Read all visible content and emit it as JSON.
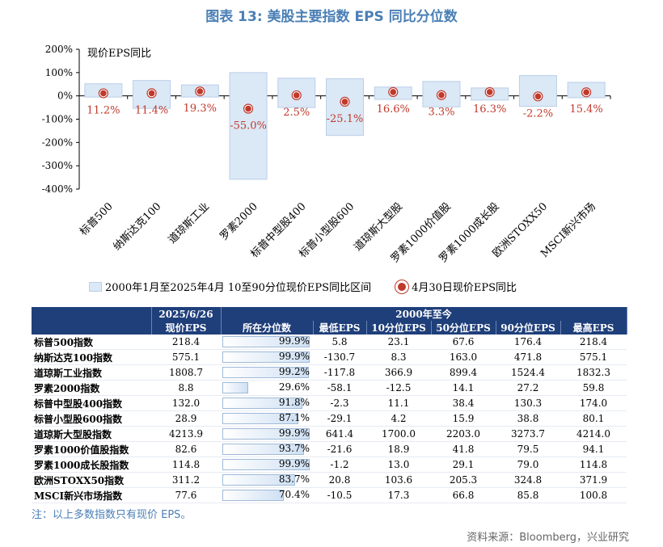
{
  "title": "图表 13: 美股主要指数 EPS 同比分位数",
  "chart_data": {
    "type": "bar",
    "ylabel_in_plot": "现价EPS同比",
    "ylim": [
      -400,
      200
    ],
    "yticks": [
      "200%",
      "100%",
      "0%",
      "-100%",
      "-200%",
      "-300%",
      "-400%"
    ],
    "categories": [
      "标普500",
      "纳斯达克100",
      "道琼斯工业",
      "罗素2000",
      "标普中型股400",
      "标普小型股600",
      "道琼斯大型股",
      "罗素1000价值股",
      "罗素1000成长股",
      "欧洲STOXX50",
      "MSCI新兴市场"
    ],
    "series": [
      {
        "name": "2000年1月至2025年4月 10至90分位现价EPS同比区间",
        "low": [
          -5,
          -54,
          -5,
          -358,
          -50,
          -170,
          -15,
          -47,
          -18,
          -45,
          -8
        ],
        "high": [
          52,
          66,
          47,
          100,
          76,
          74,
          38,
          62,
          34,
          87,
          58
        ]
      },
      {
        "name": "4月30日现价EPS同比",
        "values": [
          11.2,
          11.4,
          19.3,
          -55.0,
          2.5,
          -25.1,
          16.6,
          3.3,
          16.3,
          -2.2,
          15.4
        ],
        "labels": [
          "11.2%",
          "11.4%",
          "19.3%",
          "-55.0%",
          "2.5%",
          "-25.1%",
          "16.6%",
          "3.3%",
          "16.3%",
          "-2.2%",
          "15.4%"
        ]
      }
    ],
    "grid": false,
    "legend": "bottom"
  },
  "table": {
    "header_top": [
      "2025/6/26",
      "2000年至今"
    ],
    "header_sub": [
      "现价EPS",
      "所在分位数",
      "最低EPS",
      "10分位EPS",
      "50分位EPS",
      "90分位EPS",
      "最高EPS"
    ],
    "rows": [
      {
        "name": "标普500指数",
        "eps": "218.4",
        "pct": "99.9%",
        "pv": 99.9,
        "min": "5.8",
        "p10": "23.1",
        "p50": "67.6",
        "p90": "176.4",
        "max": "218.4"
      },
      {
        "name": "纳斯达克100指数",
        "eps": "575.1",
        "pct": "99.9%",
        "pv": 99.9,
        "min": "-130.7",
        "p10": "8.3",
        "p50": "163.0",
        "p90": "471.8",
        "max": "575.1"
      },
      {
        "name": "道琼斯工业指数",
        "eps": "1808.7",
        "pct": "99.2%",
        "pv": 99.2,
        "min": "-117.8",
        "p10": "366.9",
        "p50": "899.4",
        "p90": "1524.4",
        "max": "1832.3"
      },
      {
        "name": "罗素2000指数",
        "eps": "8.8",
        "pct": "29.6%",
        "pv": 29.6,
        "min": "-58.1",
        "p10": "-12.5",
        "p50": "14.1",
        "p90": "27.2",
        "max": "59.8"
      },
      {
        "name": "标普中型股400指数",
        "eps": "132.0",
        "pct": "91.8%",
        "pv": 91.8,
        "min": "-2.3",
        "p10": "11.1",
        "p50": "38.4",
        "p90": "130.3",
        "max": "174.0"
      },
      {
        "name": "标普小型股600指数",
        "eps": "28.9",
        "pct": "87.1%",
        "pv": 87.1,
        "min": "-29.1",
        "p10": "4.2",
        "p50": "15.9",
        "p90": "38.8",
        "max": "80.1"
      },
      {
        "name": "道琼斯大型股指数",
        "eps": "4213.9",
        "pct": "99.9%",
        "pv": 99.9,
        "min": "641.4",
        "p10": "1700.0",
        "p50": "2203.0",
        "p90": "3273.7",
        "max": "4214.0"
      },
      {
        "name": "罗素1000价值股指数",
        "eps": "82.6",
        "pct": "93.7%",
        "pv": 93.7,
        "min": "-21.6",
        "p10": "18.9",
        "p50": "41.8",
        "p90": "79.5",
        "max": "94.1"
      },
      {
        "name": "罗素1000成长股指数",
        "eps": "114.8",
        "pct": "99.9%",
        "pv": 99.9,
        "min": "-1.2",
        "p10": "13.0",
        "p50": "29.1",
        "p90": "79.0",
        "max": "114.8"
      },
      {
        "name": "欧洲STOXX50指数",
        "eps": "311.2",
        "pct": "83.7%",
        "pv": 83.7,
        "min": "20.8",
        "p10": "103.6",
        "p50": "205.3",
        "p90": "324.8",
        "max": "371.9"
      },
      {
        "name": "MSCI新兴市场指数",
        "eps": "77.6",
        "pct": "70.4%",
        "pv": 70.4,
        "min": "-10.5",
        "p10": "17.3",
        "p50": "66.8",
        "p90": "85.8",
        "max": "100.8"
      }
    ]
  },
  "note": "注：以上多数指数只有现价 EPS。",
  "source": "资料来源：Bloomberg，兴业研究",
  "colors": {
    "title": "#4a7fb5",
    "band_fill": "#dbe8f6",
    "band_stroke": "#b9cfe8",
    "marker": "#c0392b",
    "header_bg": "#1f3f7a"
  }
}
